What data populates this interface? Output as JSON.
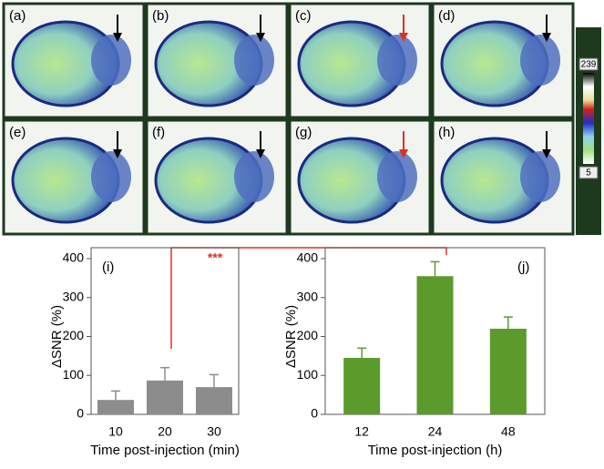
{
  "panels": {
    "labels": [
      "(a)",
      "(b)",
      "(c)",
      "(d)",
      "(e)",
      "(f)",
      "(g)",
      "(h)"
    ],
    "colorbar": {
      "max": 239,
      "min": 5
    }
  },
  "significance": "***",
  "chart_data": [
    {
      "type": "bar",
      "panel_label": "(i)",
      "x_label": "Time post-injection (min)",
      "y_label": "ΔSNR (%)",
      "categories": [
        "10",
        "20",
        "30"
      ],
      "values": [
        37,
        87,
        70
      ],
      "errors": [
        23,
        33,
        32
      ],
      "color": "#8c8c8c",
      "ylim": [
        0,
        400
      ],
      "yticks": [
        0,
        100,
        200,
        300,
        400
      ]
    },
    {
      "type": "bar",
      "panel_label": "(j)",
      "x_label": "Time post-injection (h)",
      "y_label": "ΔSNR (%)",
      "categories": [
        "12",
        "24",
        "48"
      ],
      "values": [
        145,
        355,
        220
      ],
      "errors": [
        25,
        37,
        30
      ],
      "color": "#5b9b2b",
      "ylim": [
        0,
        400
      ],
      "yticks": [
        0,
        100,
        200,
        300,
        400
      ]
    }
  ]
}
